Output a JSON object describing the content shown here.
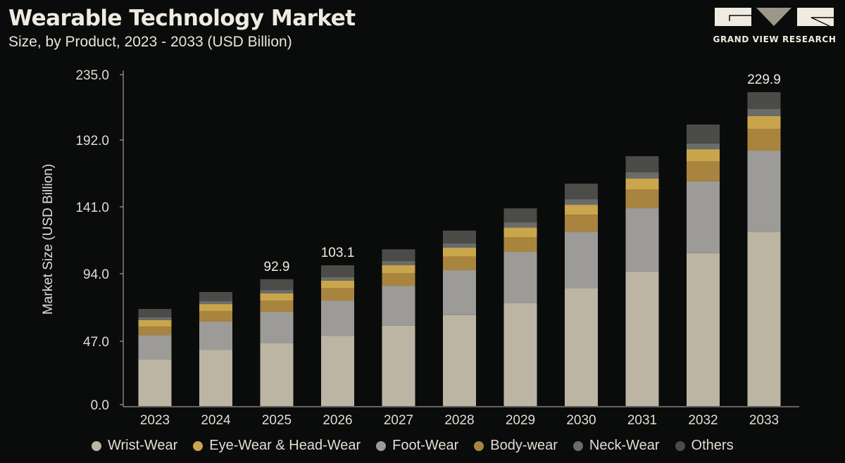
{
  "header": {
    "title": "Wearable Technology Market",
    "subtitle": "Size, by Product, 2023 - 2033 (USD Billion)"
  },
  "logo": {
    "text": "GRAND VIEW RESEARCH"
  },
  "chart_data": {
    "type": "bar",
    "stacked": true,
    "ylabel": "Market Size (USD Billion)",
    "xlabel": "",
    "yticks": [
      "0.0",
      "47.0",
      "94.0",
      "141.0",
      "192.0",
      "235.0"
    ],
    "ylim": [
      0,
      240
    ],
    "grid": false,
    "legend_position": "bottom",
    "categories": [
      "2023",
      "2024",
      "2025",
      "2026",
      "2027",
      "2028",
      "2029",
      "2030",
      "2031",
      "2032",
      "2033"
    ],
    "series": [
      {
        "name": "Wrist-Wear",
        "color": "#bdb5a3",
        "values": [
          34.0,
          41.2,
          45.9,
          51.5,
          58.8,
          66.6,
          75.6,
          86.4,
          98.5,
          112.0,
          127.7
        ]
      },
      {
        "name": "Foot-Wear",
        "color": "#9d9b97",
        "values": [
          18.0,
          20.7,
          23.2,
          25.8,
          29.3,
          32.9,
          37.3,
          41.3,
          46.7,
          52.6,
          59.4
        ]
      },
      {
        "name": "Body-wear",
        "color": "#a8843f",
        "values": [
          6.2,
          7.7,
          8.2,
          8.9,
          9.3,
          9.9,
          10.8,
          12.4,
          13.2,
          14.4,
          16.0
        ]
      },
      {
        "name": "Eye-Wear & Head-Wear",
        "color": "#c9a54c",
        "values": [
          4.8,
          5.1,
          5.2,
          5.7,
          5.7,
          6.6,
          7.1,
          7.3,
          8.3,
          9.1,
          9.4
        ]
      },
      {
        "name": "Neck-Wear",
        "color": "#6a6b6b",
        "values": [
          2.0,
          2.1,
          2.5,
          2.6,
          3.1,
          3.1,
          3.7,
          4.1,
          4.6,
          4.3,
          5.2
        ]
      },
      {
        "name": "Others",
        "color": "#4b4b47",
        "values": [
          6.1,
          6.7,
          7.9,
          8.6,
          8.6,
          9.4,
          10.3,
          11.4,
          11.7,
          13.8,
          12.2
        ]
      }
    ],
    "data_labels": {
      "2025": "92.9",
      "2026": "103.1",
      "2033": "229.9"
    },
    "legend_order": [
      "Wrist-Wear",
      "Eye-Wear & Head-Wear",
      "Foot-Wear",
      "Body-wear",
      "Neck-Wear",
      "Others"
    ]
  }
}
